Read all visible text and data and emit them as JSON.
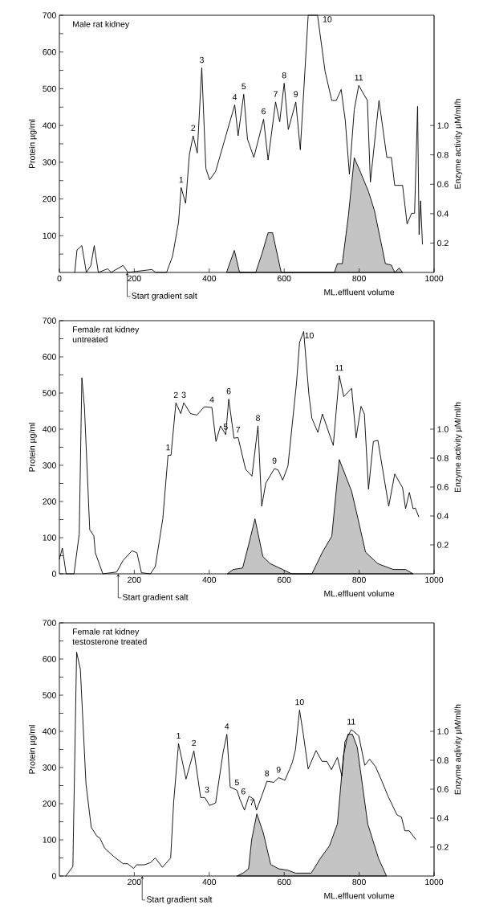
{
  "chart_data": [
    {
      "type": "line",
      "title": "Male rat kidney",
      "xlabel": "ML.effluent volume",
      "ylabel": "Protein µg/ml",
      "y2label": "Enzyme activity µM/ml/h",
      "xlim": [
        0,
        1000
      ],
      "xticks": [
        0,
        200,
        400,
        600,
        800,
        1000
      ],
      "ylim": [
        0,
        700
      ],
      "yticks": [
        {
          "value": 50,
          "label": null
        },
        100,
        {
          "value": 150,
          "label": null
        },
        200,
        {
          "value": 250,
          "label": null
        },
        300,
        {
          "value": 350,
          "label": null
        },
        400,
        {
          "value": 450,
          "label": null
        },
        500,
        {
          "value": 550,
          "label": null
        },
        600,
        {
          "value": 650,
          "label": null
        },
        700
      ],
      "y2lim": [
        0,
        1.75
      ],
      "y2ticks": [
        {
          "value": 0.2,
          "label": "0.2"
        },
        {
          "value": 0.4,
          "label": "0.4"
        },
        {
          "value": 0.6,
          "label": "0.6"
        },
        {
          "value": 0.8,
          "label": "0.8"
        },
        {
          "value": 1.0,
          "label": "1.0"
        }
      ],
      "series": [
        {
          "type": "area",
          "axis": "y2",
          "color": "#c4c4c4",
          "x": [
            446,
            467,
            481,
            524,
            541,
            557,
            569,
            592,
            734,
            742,
            755,
            771,
            787,
            804,
            825,
            841,
            870,
            886,
            895,
            907,
            916
          ],
          "values": [
            0,
            0.15,
            0,
            0,
            0.13,
            0.27,
            0.27,
            0,
            0,
            0.06,
            0.06,
            0.38,
            0.78,
            0.68,
            0.55,
            0.42,
            0.06,
            0.05,
            0,
            0.03,
            0
          ]
        },
        {
          "color": "#000000",
          "x": [
            41,
            47,
            60,
            72,
            84,
            93,
            104,
            129,
            138,
            170,
            183,
            247,
            257,
            286,
            302,
            318,
            325,
            337,
            347,
            357,
            368,
            380,
            391,
            401,
            417,
            468,
            477,
            492,
            502,
            519,
            545,
            557,
            577,
            588,
            600,
            611,
            631,
            643,
            664,
            689,
            709,
            727,
            739,
            752,
            763,
            774,
            787,
            799,
            822,
            830,
            853,
            874,
            886,
            895,
            916,
            928,
            940,
            948,
            956,
            960,
            964,
            969
          ],
          "values": [
            0,
            61,
            73,
            0,
            19,
            73,
            0,
            10,
            0,
            19,
            0,
            8,
            0,
            0,
            44,
            136,
            231,
            188,
            321,
            372,
            325,
            557,
            283,
            252,
            275,
            456,
            372,
            485,
            363,
            313,
            417,
            306,
            464,
            410,
            515,
            389,
            464,
            334,
            700,
            700,
            548,
            468,
            468,
            498,
            414,
            267,
            443,
            509,
            468,
            246,
            468,
            313,
            313,
            237,
            237,
            132,
            161,
            161,
            452,
            103,
            195,
            77
          ]
        }
      ],
      "annotations": [
        {
          "text": "1",
          "x": 325,
          "y": 231
        },
        {
          "text": "2",
          "x": 357,
          "y": 372
        },
        {
          "text": "3",
          "x": 380,
          "y": 557
        },
        {
          "text": "4",
          "x": 468,
          "y": 456
        },
        {
          "text": "5",
          "x": 492,
          "y": 485
        },
        {
          "text": "6",
          "x": 545,
          "y": 417
        },
        {
          "text": "7",
          "x": 577,
          "y": 464
        },
        {
          "text": "8",
          "x": 600,
          "y": 515
        },
        {
          "text": "9",
          "x": 631,
          "y": 464
        },
        {
          "text": "10",
          "x": 700,
          "y": 700
        },
        {
          "text": "11",
          "x": 799,
          "y": 509
        },
        {
          "text": "Start gradient salt",
          "x": 181,
          "y": 0
        }
      ]
    },
    {
      "type": "line",
      "title": "Female rat kidney",
      "subtitle": "untreated",
      "xlabel": "ML.effluent volume",
      "ylabel": "Protein µg/ml",
      "y2label": "Enzyme activity µM/ml/h",
      "xlim": [
        0,
        1000
      ],
      "xticks": [
        200,
        400,
        600,
        800,
        1000
      ],
      "ylim": [
        0,
        700
      ],
      "yticks": [
        0,
        {
          "value": 50,
          "label": null
        },
        100,
        {
          "value": 150,
          "label": null
        },
        200,
        {
          "value": 250,
          "label": null
        },
        300,
        {
          "value": 350,
          "label": null
        },
        400,
        {
          "value": 450,
          "label": null
        },
        500,
        {
          "value": 550,
          "label": null
        },
        600,
        {
          "value": 650,
          "label": null
        },
        700
      ],
      "y2lim": [
        0,
        1.75
      ],
      "y2ticks": [
        {
          "value": 0.2,
          "label": "0.2"
        },
        {
          "value": 0.4,
          "label": "0.4"
        },
        {
          "value": 0.6,
          "label": "0.6"
        },
        {
          "value": 0.8,
          "label": "0.8"
        },
        {
          "value": 1.0,
          "label": "1.0"
        }
      ],
      "series": [
        {
          "type": "area",
          "axis": "y2",
          "color": "#c4c4c4",
          "x": [
            448,
            464,
            489,
            505,
            522,
            543,
            563,
            596,
            620,
            674,
            702,
            727,
            747,
            780,
            797,
            817,
            850,
            891,
            924,
            944
          ],
          "values": [
            0,
            0.03,
            0.04,
            0.2,
            0.38,
            0.12,
            0.07,
            0.03,
            0,
            0,
            0.15,
            0.26,
            0.79,
            0.57,
            0.38,
            0.15,
            0.07,
            0.03,
            0.03,
            0
          ]
        },
        {
          "color": "#000000",
          "x": [
            0,
            8,
            18,
            39,
            53,
            60,
            67,
            81,
            92,
            96,
            116,
            153,
            170,
            194,
            207,
            219,
            243,
            256,
            276,
            290,
            298,
            311,
            324,
            332,
            350,
            367,
            387,
            407,
            418,
            430,
            444,
            452,
            466,
            477,
            497,
            514,
            530,
            540,
            551,
            574,
            584,
            596,
            610,
            633,
            641,
            652,
            666,
            674,
            690,
            702,
            719,
            731,
            747,
            759,
            780,
            792,
            805,
            814,
            825,
            838,
            850,
            879,
            895,
            916,
            924,
            934,
            944,
            950,
            959
          ],
          "values": [
            41,
            71,
            0,
            0,
            110,
            542,
            460,
            122,
            105,
            58,
            0,
            5,
            37,
            64,
            58,
            3,
            0,
            20,
            152,
            328,
            328,
            473,
            443,
            473,
            443,
            439,
            462,
            460,
            366,
            409,
            385,
            483,
            375,
            377,
            289,
            270,
            409,
            187,
            251,
            291,
            287,
            259,
            298,
            529,
            640,
            670,
            495,
            430,
            391,
            442,
            391,
            355,
            548,
            490,
            513,
            376,
            463,
            442,
            234,
            366,
            369,
            187,
            276,
            238,
            180,
            225,
            180,
            182,
            158
          ]
        }
      ],
      "annotations": [
        {
          "text": "1",
          "x": 290,
          "y": 328
        },
        {
          "text": "2",
          "x": 311,
          "y": 473
        },
        {
          "text": "3",
          "x": 332,
          "y": 473
        },
        {
          "text": "4",
          "x": 407,
          "y": 460
        },
        {
          "text": "5",
          "x": 444,
          "y": 385
        },
        {
          "text": "6",
          "x": 452,
          "y": 483
        },
        {
          "text": "7",
          "x": 477,
          "y": 377
        },
        {
          "text": "8",
          "x": 530,
          "y": 409
        },
        {
          "text": "9",
          "x": 574,
          "y": 291
        },
        {
          "text": "10",
          "x": 652,
          "y": 670
        },
        {
          "text": "11",
          "x": 747,
          "y": 548
        },
        {
          "text": "Start gradient salt",
          "x": 157,
          "y": 0
        }
      ]
    },
    {
      "type": "line",
      "title": "Female rat kidney",
      "subtitle": "testosterone treated",
      "xlabel": "ML.effluent volume",
      "ylabel": "Protein µg/ml",
      "y2label": "Enzyme aqlivity µM/ml/h",
      "xlim": [
        0,
        1000
      ],
      "xticks": [
        200,
        400,
        600,
        800,
        1000
      ],
      "ylim": [
        0,
        700
      ],
      "yticks": [
        0,
        {
          "value": 50,
          "label": null
        },
        100,
        {
          "value": 150,
          "label": null
        },
        200,
        {
          "value": 250,
          "label": null
        },
        300,
        {
          "value": 350,
          "label": null
        },
        400,
        {
          "value": 450,
          "label": null
        },
        500,
        {
          "value": 550,
          "label": null
        },
        600,
        {
          "value": 650,
          "label": null
        },
        700
      ],
      "y2lim": [
        0,
        1.75
      ],
      "y2ticks": [
        {
          "value": 0.2,
          "label": "0.2"
        },
        {
          "value": 0.4,
          "label": "0.4"
        },
        {
          "value": 0.6,
          "label": "0.6"
        },
        {
          "value": 0.8,
          "label": "0.8"
        },
        {
          "value": 1.0,
          "label": "1.0"
        }
      ],
      "series": [
        {
          "type": "area",
          "axis": "y2",
          "color": "#c4c4c4",
          "x": [
            474,
            490,
            505,
            513,
            527,
            544,
            564,
            585,
            610,
            630,
            672,
            696,
            721,
            742,
            758,
            770,
            782,
            795,
            823,
            852,
            873
          ],
          "values": [
            0,
            0.02,
            0.05,
            0.25,
            0.43,
            0.3,
            0.08,
            0.05,
            0.04,
            0.02,
            0.02,
            0.12,
            0.21,
            0.36,
            0.83,
            0.98,
            0.98,
            0.89,
            0.36,
            0.12,
            0
          ]
        },
        {
          "color": "#000000",
          "x": [
            17,
            36,
            46,
            56,
            71,
            85,
            100,
            108,
            121,
            145,
            170,
            182,
            198,
            206,
            227,
            243,
            256,
            275,
            297,
            305,
            318,
            338,
            359,
            377,
            388,
            401,
            417,
            437,
            447,
            456,
            474,
            482,
            494,
            506,
            519,
            526,
            540,
            554,
            572,
            585,
            602,
            614,
            622,
            630,
            641,
            651,
            664,
            685,
            701,
            714,
            726,
            742,
            754,
            762,
            779,
            799,
            815,
            828,
            844,
            860,
            877,
            901,
            913,
            922,
            934,
            951
          ],
          "values": [
            0,
            26,
            619,
            572,
            255,
            135,
            110,
            105,
            77,
            54,
            34,
            34,
            21,
            31,
            31,
            37,
            50,
            24,
            50,
            204,
            366,
            268,
            346,
            217,
            217,
            195,
            202,
            342,
            392,
            246,
            237,
            212,
            182,
            221,
            212,
            182,
            221,
            262,
            259,
            272,
            265,
            294,
            315,
            349,
            459,
            392,
            296,
            347,
            317,
            317,
            294,
            328,
            276,
            371,
            405,
            388,
            306,
            323,
            302,
            264,
            221,
            169,
            163,
            125,
            125,
            101
          ]
        }
      ],
      "annotations": [
        {
          "text": "1",
          "x": 318,
          "y": 366
        },
        {
          "text": "2",
          "x": 359,
          "y": 346
        },
        {
          "text": "3",
          "x": 394,
          "y": 217
        },
        {
          "text": "4",
          "x": 447,
          "y": 392
        },
        {
          "text": "5",
          "x": 474,
          "y": 237
        },
        {
          "text": "6",
          "x": 491,
          "y": 212
        },
        {
          "text": "7",
          "x": 514,
          "y": 182
        },
        {
          "text": "8",
          "x": 554,
          "y": 262
        },
        {
          "text": "9",
          "x": 585,
          "y": 272
        },
        {
          "text": "10",
          "x": 641,
          "y": 459
        },
        {
          "text": "11",
          "x": 779,
          "y": 405
        },
        {
          "text": "Start gradient salt",
          "x": 221,
          "y": 0
        }
      ]
    }
  ]
}
